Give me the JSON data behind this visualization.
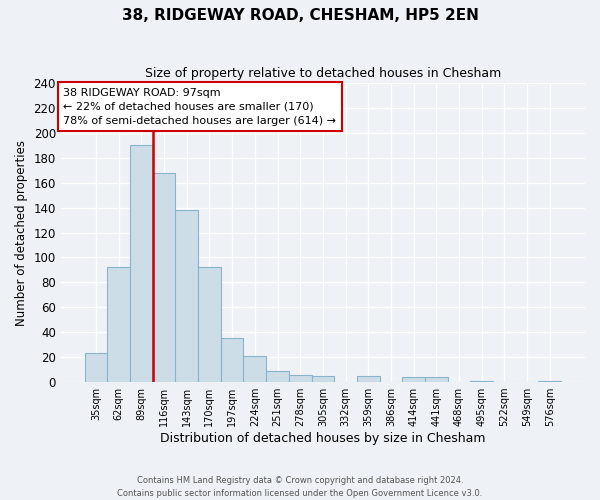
{
  "title": "38, RIDGEWAY ROAD, CHESHAM, HP5 2EN",
  "subtitle": "Size of property relative to detached houses in Chesham",
  "xlabel": "Distribution of detached houses by size in Chesham",
  "ylabel": "Number of detached properties",
  "bar_labels": [
    "35sqm",
    "62sqm",
    "89sqm",
    "116sqm",
    "143sqm",
    "170sqm",
    "197sqm",
    "224sqm",
    "251sqm",
    "278sqm",
    "305sqm",
    "332sqm",
    "359sqm",
    "386sqm",
    "414sqm",
    "441sqm",
    "468sqm",
    "495sqm",
    "522sqm",
    "549sqm",
    "576sqm"
  ],
  "bar_values": [
    23,
    92,
    190,
    168,
    138,
    92,
    35,
    21,
    9,
    6,
    5,
    0,
    5,
    0,
    4,
    4,
    0,
    1,
    0,
    0,
    1
  ],
  "bar_color": "#ccdde8",
  "bar_edge_color": "#8ab4cc",
  "vline_color": "#cc0000",
  "annotation_title": "38 RIDGEWAY ROAD: 97sqm",
  "annotation_line1": "← 22% of detached houses are smaller (170)",
  "annotation_line2": "78% of semi-detached houses are larger (614) →",
  "annotation_box_color": "#ffffff",
  "annotation_box_edge": "#cc0000",
  "ylim": [
    0,
    240
  ],
  "yticks": [
    0,
    20,
    40,
    60,
    80,
    100,
    120,
    140,
    160,
    180,
    200,
    220,
    240
  ],
  "footer_line1": "Contains HM Land Registry data © Crown copyright and database right 2024.",
  "footer_line2": "Contains public sector information licensed under the Open Government Licence v3.0.",
  "bg_color": "#eef2f6",
  "plot_bg_color": "#eef2f6",
  "grid_color": "#ffffff"
}
